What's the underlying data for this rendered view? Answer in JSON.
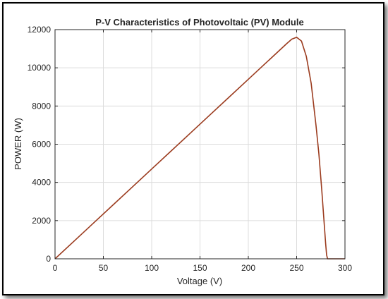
{
  "chart_data": {
    "type": "line",
    "title": "P-V Characteristics of Photovoltaic (PV) Module",
    "xlabel": "Voltage (V)",
    "ylabel": "POWER (W)",
    "xlim": [
      0,
      300
    ],
    "ylim": [
      0,
      12000
    ],
    "xticks": [
      0,
      50,
      100,
      150,
      200,
      250,
      300
    ],
    "yticks": [
      0,
      2000,
      4000,
      6000,
      8000,
      10000,
      12000
    ],
    "grid": true,
    "line_color": "#9b3b1e",
    "series": [
      {
        "x": [
          0,
          20,
          40,
          60,
          80,
          100,
          120,
          140,
          160,
          180,
          200,
          220,
          230,
          240,
          245,
          250,
          255,
          260,
          265,
          270,
          273,
          276,
          278,
          280,
          281,
          282,
          290,
          300
        ],
        "y": [
          0,
          940,
          1880,
          2820,
          3760,
          4700,
          5640,
          6580,
          7520,
          8460,
          9400,
          10340,
          10810,
          11280,
          11500,
          11600,
          11400,
          10600,
          9200,
          7000,
          5500,
          3600,
          2200,
          800,
          200,
          0,
          0,
          0
        ]
      }
    ]
  }
}
